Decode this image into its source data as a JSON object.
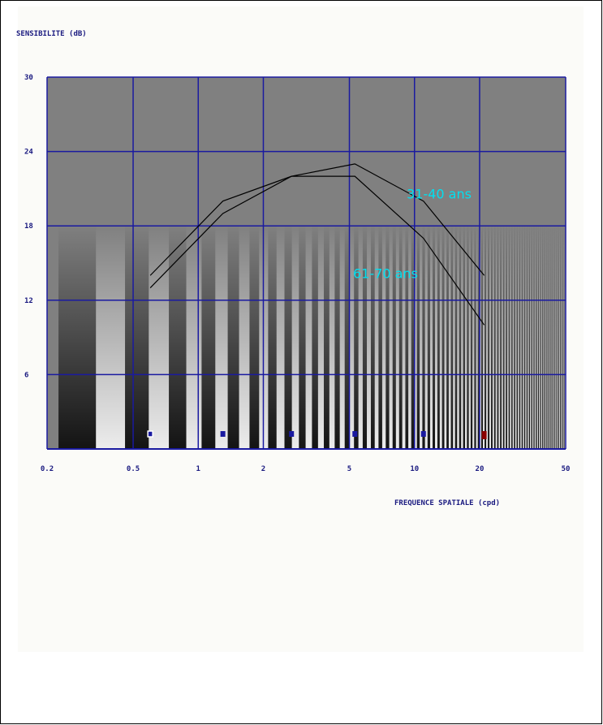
{
  "chart_data": {
    "type": "line",
    "y_label": "SENSIBILITE (dB)",
    "x_label": "FREQUENCE SPATIALE (cpd)",
    "x_scale": "log",
    "xlim": [
      0.2,
      50
    ],
    "xticks": [
      0.2,
      0.5,
      1,
      2,
      5,
      10,
      20,
      50
    ],
    "ylim": [
      0,
      30
    ],
    "yticks": [
      6,
      12,
      18,
      24,
      30
    ],
    "grid": true,
    "grid_color": "#1a1aa0",
    "x": [
      0.6,
      1.3,
      2.7,
      5.3,
      11,
      21
    ],
    "series": [
      {
        "name": "31-40 ans",
        "color": "#000000",
        "label_color": "#00e0f0",
        "values": [
          14,
          20,
          22,
          23,
          20,
          14
        ]
      },
      {
        "name": "61-70 ans",
        "color": "#000000",
        "label_color": "#00e0f0",
        "values": [
          13,
          19,
          22,
          22,
          17,
          10
        ]
      }
    ]
  }
}
